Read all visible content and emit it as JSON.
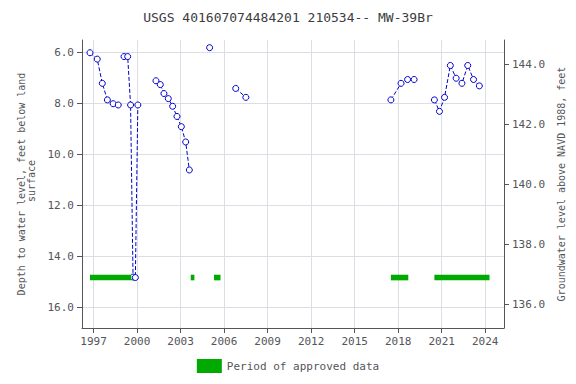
{
  "chart_data": {
    "type": "line",
    "title": "USGS 401607074484201 210534-- MW-39Br",
    "ylabel": "Depth to water level, feet below land\n surface",
    "y2label": "Groundwater level above NAVD 1988, feet",
    "xlim": [
      1996.2,
      2025.3
    ],
    "xticks": [
      1997,
      2000,
      2003,
      2006,
      2009,
      2012,
      2015,
      2018,
      2021,
      2024
    ],
    "ylim": [
      16.8,
      5.5
    ],
    "yticks": [
      {
        "value": 6,
        "label": "6.0"
      },
      {
        "value": 8,
        "label": "8.0"
      },
      {
        "value": 10,
        "label": "10.0"
      },
      {
        "value": 12,
        "label": "12.0"
      },
      {
        "value": 14,
        "label": "14.0"
      },
      {
        "value": 16,
        "label": "16.0"
      }
    ],
    "y2lim": [
      135.2,
      144.8
    ],
    "y2ticks": [
      {
        "value": 144,
        "label": "144.0"
      },
      {
        "value": 142,
        "label": "142.0"
      },
      {
        "value": 140,
        "label": "140.0"
      },
      {
        "value": 138,
        "label": "138.0"
      },
      {
        "value": 136,
        "label": "136.0"
      }
    ],
    "grid": true,
    "legend": "bottom",
    "series": [
      {
        "type": "line",
        "color": "#0000CC",
        "marker": "circle",
        "line_style": "dashed",
        "x": [
          1996.75,
          1997.25,
          1997.6,
          1997.95,
          1998.35,
          1998.7,
          null,
          1999.1,
          1999.35,
          1999.55,
          1999.72,
          1999.88,
          2000.05,
          null,
          2001.3,
          2001.6,
          2001.85,
          2002.15,
          2002.45,
          2002.75,
          2003.05,
          2003.35,
          2003.6,
          null,
          2005.0,
          null,
          2006.8,
          2007.5,
          null,
          2017.5,
          2018.2,
          2018.65,
          2019.1,
          null,
          2020.5,
          2020.85,
          2021.2,
          2021.6,
          2022.0,
          2022.4,
          2022.8,
          2023.2,
          2023.6
        ],
        "values": [
          6.0,
          6.25,
          7.2,
          7.85,
          8.0,
          8.05,
          null,
          6.15,
          6.15,
          8.05,
          14.8,
          14.82,
          8.05,
          null,
          7.1,
          7.25,
          7.6,
          7.8,
          8.1,
          8.5,
          8.9,
          9.5,
          10.6,
          null,
          5.8,
          null,
          7.4,
          7.75,
          null,
          7.85,
          7.2,
          7.05,
          7.05,
          null,
          7.85,
          8.3,
          7.75,
          6.5,
          7.0,
          7.2,
          6.5,
          7.05,
          7.3
        ]
      },
      {
        "name": "Period of approved data",
        "type": "bar",
        "orientation": "horizontal",
        "color": "#00AA00",
        "periods": [
          [
            1996.75,
            1999.6
          ],
          [
            2003.7,
            2003.95
          ],
          [
            2005.3,
            2005.75
          ],
          [
            2017.5,
            2018.7
          ],
          [
            2020.5,
            2024.3
          ]
        ],
        "y": 14.82,
        "height": 0.22
      }
    ]
  }
}
